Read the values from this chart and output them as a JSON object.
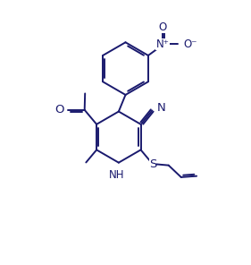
{
  "bg_color": "#ffffff",
  "line_color": "#1a1a6e",
  "lw": 1.4,
  "fs": 8.5,
  "xlim": [
    -1.5,
    8.5
  ],
  "ylim": [
    -1.0,
    10.5
  ]
}
